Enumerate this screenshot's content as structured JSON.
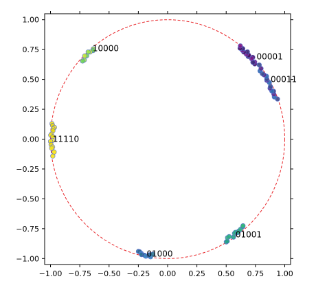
{
  "chart_data": {
    "type": "scatter",
    "xlim": [
      -1.05,
      1.05
    ],
    "ylim": [
      -1.05,
      1.05
    ],
    "x_ticks": [
      -1.0,
      -0.75,
      -0.5,
      -0.25,
      0.0,
      0.25,
      0.5,
      0.75,
      1.0
    ],
    "y_ticks": [
      -1.0,
      -0.75,
      -0.5,
      -0.25,
      0.0,
      0.25,
      0.5,
      0.75,
      1.0
    ],
    "x_tick_labels": [
      "−1.00",
      "−0.75",
      "−0.50",
      "−0.25",
      "0.00",
      "0.25",
      "0.50",
      "0.75",
      "1.00"
    ],
    "y_tick_labels": [
      "−1.00",
      "−0.75",
      "−0.50",
      "−0.25",
      "0.00",
      "0.25",
      "0.50",
      "0.75",
      "1.00"
    ],
    "grid": false,
    "circle": {
      "center": [
        0,
        0
      ],
      "radius": 1.0,
      "color": "#e8262a",
      "style": "dashed"
    },
    "clusters": [
      {
        "label": "10000",
        "angle_range_deg": [
          130,
          138
        ],
        "count": 8,
        "colors": [
          "#9be24a",
          "#6fd35a",
          "#c4e83a"
        ],
        "label_x": -0.64,
        "label_y": 0.76
      },
      {
        "label": "00001",
        "angle_range_deg": [
          40,
          52
        ],
        "count": 14,
        "colors": [
          "#4a0a5e",
          "#7a1a8a",
          "#3b2a7a"
        ],
        "label_x": 0.76,
        "label_y": 0.69
      },
      {
        "label": "00011",
        "angle_range_deg": [
          20,
          38
        ],
        "count": 16,
        "colors": [
          "#3b4f8f",
          "#2e6db0",
          "#5a2a8a"
        ],
        "label_x": 0.88,
        "label_y": 0.5
      },
      {
        "label": "11110",
        "angle_range_deg": [
          172,
          188
        ],
        "count": 16,
        "colors": [
          "#f4e31b",
          "#e8d80f",
          "#fde725"
        ],
        "label_x": -0.98,
        "label_y": 0.0
      },
      {
        "label": "01001",
        "angle_range_deg": [
          -60,
          -48
        ],
        "count": 12,
        "colors": [
          "#2ab07f",
          "#20a386",
          "#35b779"
        ],
        "label_x": 0.58,
        "label_y": -0.8
      },
      {
        "label": "01000",
        "angle_range_deg": [
          -105,
          -97
        ],
        "count": 10,
        "colors": [
          "#2c728e",
          "#31688e",
          "#3b8bc2"
        ],
        "label_x": -0.18,
        "label_y": -0.96
      }
    ]
  }
}
